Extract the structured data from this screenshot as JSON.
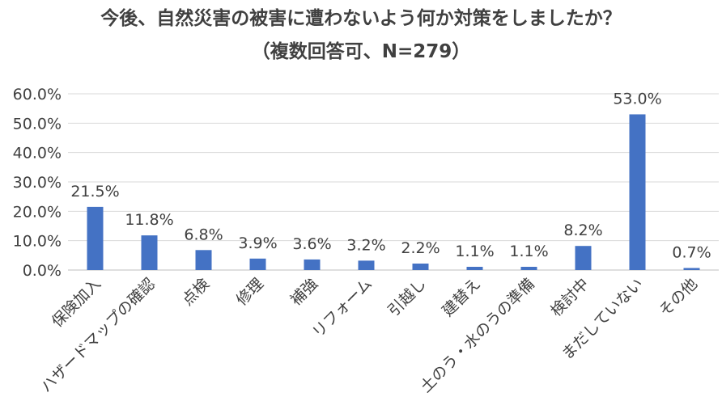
{
  "chart_data": {
    "type": "bar",
    "title": "今後、自然災害の被害に遭わないよう何か対策をしましたか？",
    "subtitle": "（複数回答可、N=279）",
    "xlabel": "",
    "ylabel": "",
    "ylim": [
      0,
      60
    ],
    "y_ticks": [
      "0.0%",
      "10.0%",
      "20.0%",
      "30.0%",
      "40.0%",
      "50.0%",
      "60.0%"
    ],
    "y_tick_values": [
      0,
      10,
      20,
      30,
      40,
      50,
      60
    ],
    "grid": true,
    "legend": "none",
    "bar_color": "#4472C4",
    "categories": [
      "保険加入",
      "ハザードマップの確認",
      "点検",
      "修理",
      "補強",
      "リフォーム",
      "引越し",
      "建替え",
      "土のう・水のうの準備",
      "検討中",
      "まだしていない",
      "その他"
    ],
    "values": [
      21.5,
      11.8,
      6.8,
      3.9,
      3.6,
      3.2,
      2.2,
      1.1,
      1.1,
      8.2,
      53.0,
      0.7
    ],
    "value_labels": [
      "21.5%",
      "11.8%",
      "6.8%",
      "3.9%",
      "3.6%",
      "3.2%",
      "2.2%",
      "1.1%",
      "1.1%",
      "8.2%",
      "53.0%",
      "0.7%"
    ]
  }
}
